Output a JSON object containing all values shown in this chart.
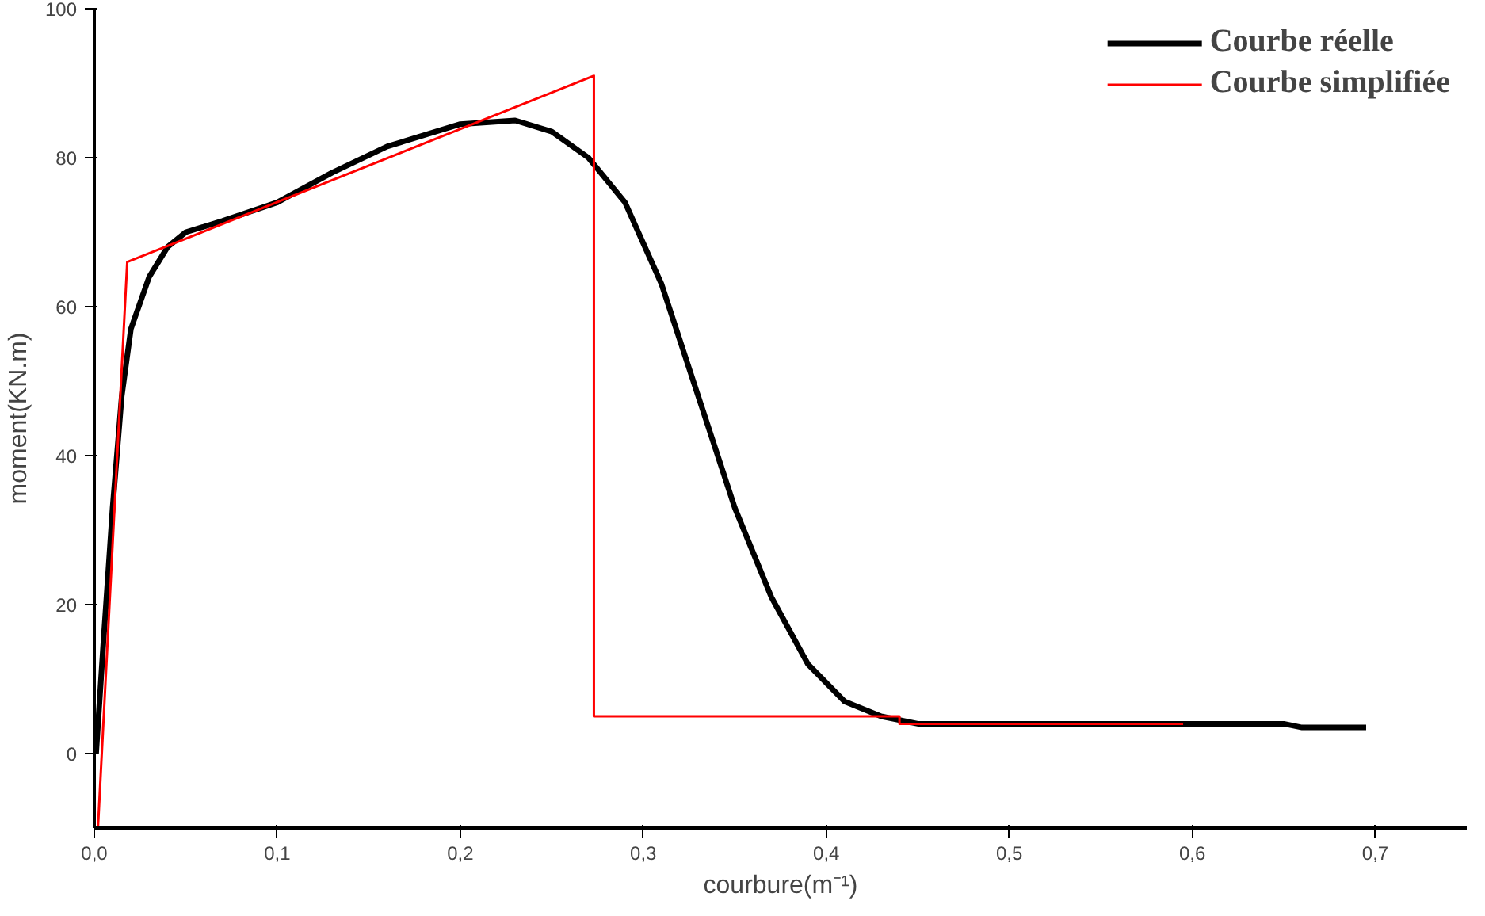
{
  "chart_data": {
    "type": "line",
    "xlabel": "courbure(m⁻¹)",
    "ylabel": "moment(KN.m)",
    "xlim": [
      0,
      0.75
    ],
    "ylim": [
      -10,
      100
    ],
    "xticks": [
      {
        "value": 0,
        "label": "0,0"
      },
      {
        "value": 0.1,
        "label": "0,1"
      },
      {
        "value": 0.2,
        "label": "0,2"
      },
      {
        "value": 0.3,
        "label": "0,3"
      },
      {
        "value": 0.4,
        "label": "0,4"
      },
      {
        "value": 0.5,
        "label": "0,5"
      },
      {
        "value": 0.6,
        "label": "0,6"
      },
      {
        "value": 0.7,
        "label": "0,7"
      }
    ],
    "yticks": [
      0,
      20,
      40,
      60,
      80,
      100
    ],
    "grid": false,
    "legend": "top right",
    "marker": "none",
    "line_style": "solid",
    "series": [
      {
        "name": "Courbe réelle",
        "color": "#000000",
        "x": [
          0.001,
          0.005,
          0.01,
          0.015,
          0.02,
          0.03,
          0.04,
          0.05,
          0.07,
          0.1,
          0.13,
          0.16,
          0.2,
          0.23,
          0.25,
          0.27,
          0.29,
          0.31,
          0.33,
          0.35,
          0.37,
          0.39,
          0.41,
          0.43,
          0.45,
          0.55,
          0.65,
          0.66,
          0.695
        ],
        "values": [
          0,
          15,
          33,
          48,
          57,
          64,
          68,
          70,
          71.5,
          74,
          78,
          81.5,
          84.5,
          85,
          83.5,
          80,
          74,
          63,
          48,
          33,
          21,
          12,
          7,
          5,
          4,
          4,
          4,
          3.5,
          3.5
        ]
      },
      {
        "name": "Courbe simplifiée",
        "color": "#ff0000",
        "x": [
          0.002,
          0.018,
          0.273,
          0.273,
          0.44,
          0.44,
          0.595
        ],
        "values": [
          -10,
          66,
          91,
          5,
          5,
          4,
          4
        ]
      }
    ]
  }
}
